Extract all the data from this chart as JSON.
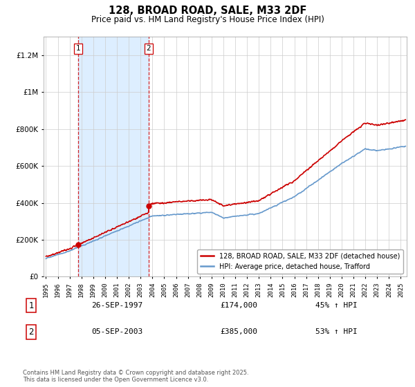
{
  "title": "128, BROAD ROAD, SALE, M33 2DF",
  "subtitle": "Price paid vs. HM Land Registry's House Price Index (HPI)",
  "legend_line1": "128, BROAD ROAD, SALE, M33 2DF (detached house)",
  "legend_line2": "HPI: Average price, detached house, Trafford",
  "sale1_date": 1997.74,
  "sale1_price": 174000,
  "sale1_label": "1",
  "sale1_text": "26-SEP-1997",
  "sale1_amount": "£174,000",
  "sale1_hpi": "45% ↑ HPI",
  "sale2_date": 2003.68,
  "sale2_price": 385000,
  "sale2_label": "2",
  "sale2_text": "05-SEP-2003",
  "sale2_amount": "£385,000",
  "sale2_hpi": "53% ↑ HPI",
  "footer": "Contains HM Land Registry data © Crown copyright and database right 2025.\nThis data is licensed under the Open Government Licence v3.0.",
  "red_color": "#cc0000",
  "blue_color": "#6699cc",
  "shade_color": "#ddeeff",
  "ylim": [
    0,
    1300000
  ],
  "xlim": [
    1994.8,
    2025.5
  ],
  "yticks": [
    0,
    200000,
    400000,
    600000,
    800000,
    1000000,
    1200000
  ]
}
